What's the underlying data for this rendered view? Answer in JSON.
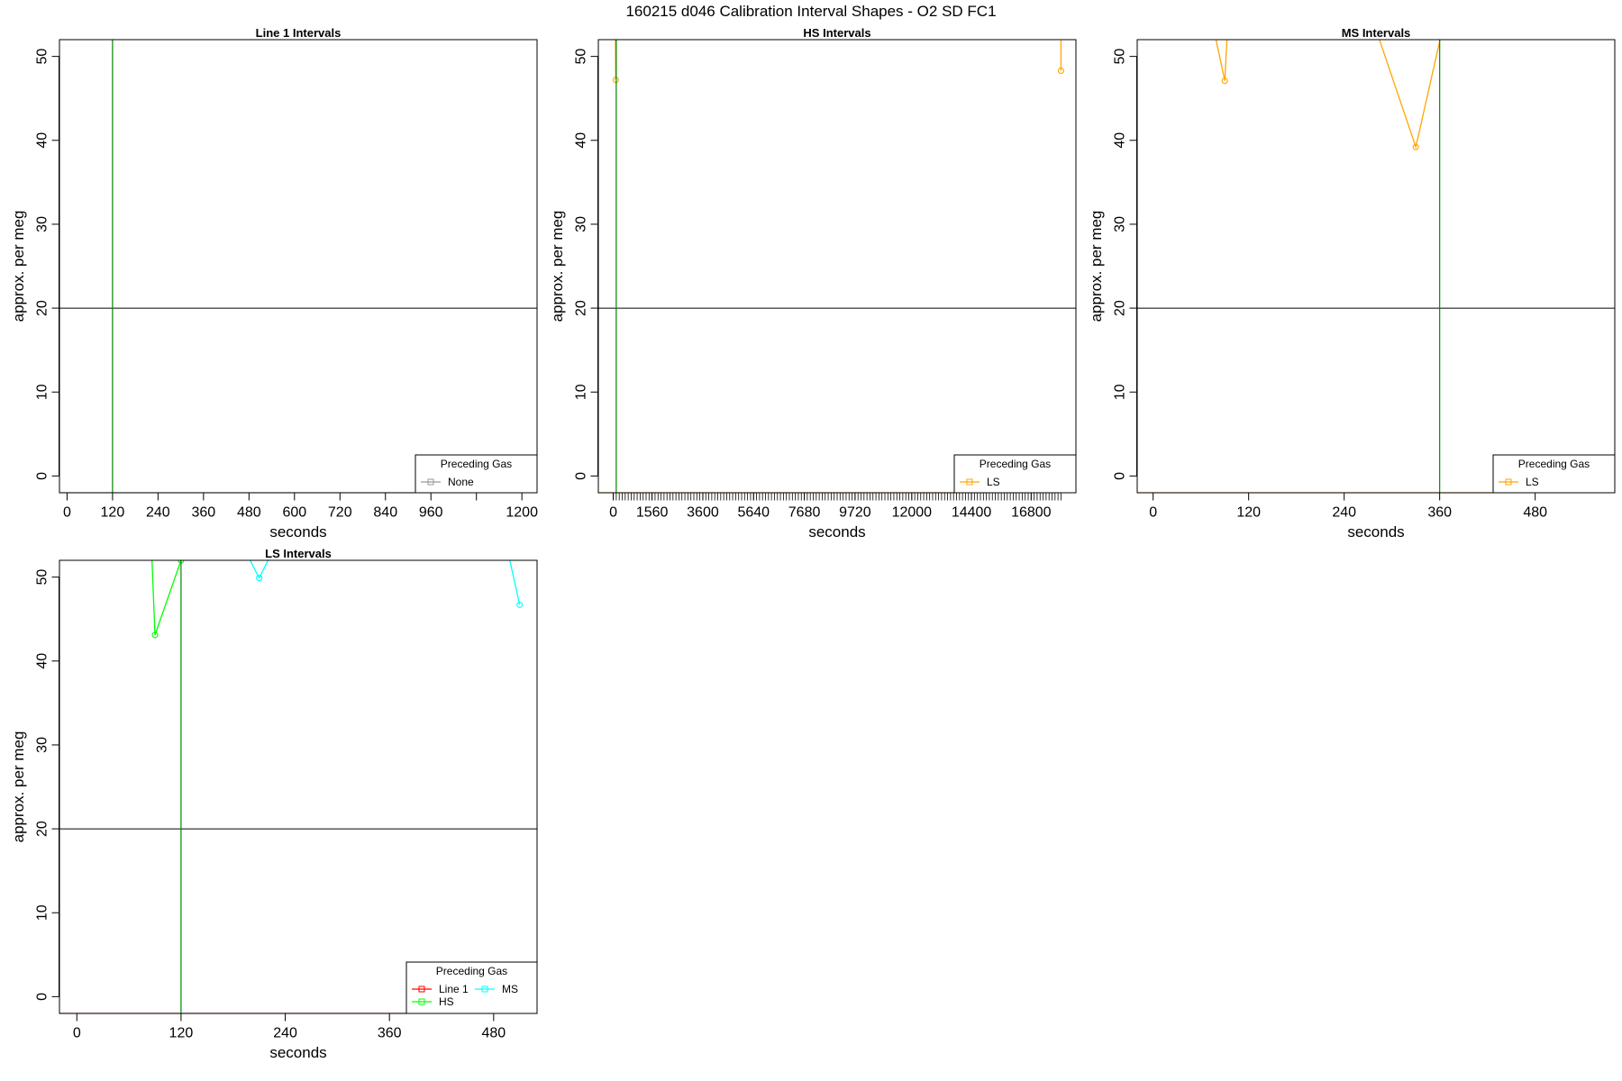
{
  "page": {
    "title": "160215   d046   Calibration Interval Shapes - O2 SD FC1"
  },
  "chart_data": [
    {
      "type": "line",
      "title": "Line 1 Intervals",
      "xlabel": "seconds",
      "ylabel": "approx. per meg",
      "xlim": [
        -20,
        1240
      ],
      "ylim": [
        -2,
        52
      ],
      "yticks": [
        0,
        10,
        20,
        30,
        40,
        50
      ],
      "xticks": [
        0,
        120,
        240,
        360,
        480,
        600,
        720,
        840,
        960,
        1080,
        1200
      ],
      "xtick_labels": [
        "0",
        "120",
        "240",
        "360",
        "480",
        "600",
        "720",
        "840",
        "960",
        "",
        "1200"
      ],
      "hline": 20,
      "vline": 120,
      "vline_color": "#008800",
      "legend": {
        "title": "Preceding Gas",
        "placement": "bottom-right",
        "entries": [
          {
            "label": "None",
            "color": "#999999"
          }
        ]
      },
      "series": [
        {
          "name": "None",
          "color": "#999999",
          "markers": false,
          "points": [
            [
              -20,
              -2
            ],
            [
              1240,
              -2
            ]
          ]
        }
      ]
    },
    {
      "type": "line",
      "title": "HS Intervals",
      "xlabel": "seconds",
      "ylabel": "approx. per meg",
      "xlim": [
        -600,
        18600
      ],
      "ylim": [
        -2,
        52
      ],
      "yticks": [
        0,
        10,
        20,
        30,
        40,
        50
      ],
      "xticks": [
        0,
        1560,
        3600,
        5640,
        7680,
        9720,
        12000,
        14400,
        16800
      ],
      "xtick_labels": [
        "0",
        "1560",
        "3600",
        "5640",
        "7680",
        "9720",
        "12000",
        "14400",
        "16800"
      ],
      "minor_xtick_step": 120,
      "minor_xtick_range": [
        0,
        18000
      ],
      "hline": 20,
      "vline": 120,
      "vline_color": "#008800",
      "legend": {
        "title": "Preceding Gas",
        "placement": "bottom-right",
        "entries": [
          {
            "label": "LS",
            "color": "#ffa500"
          }
        ]
      },
      "series": [
        {
          "name": "LS",
          "color": "#ffa500",
          "markers": false,
          "points": [
            [
              -600,
              -2
            ],
            [
              18600,
              -2
            ]
          ]
        },
        {
          "name": "LS",
          "color": "#ffa500",
          "markers": true,
          "points": [
            [
              80,
              56
            ],
            [
              100,
              47.2
            ],
            [
              100,
              56
            ]
          ]
        },
        {
          "name": "LS",
          "color": "#ffa500",
          "markers": true,
          "points": [
            [
              18000,
              56
            ],
            [
              18000,
              48.3
            ]
          ]
        }
      ]
    },
    {
      "type": "line",
      "title": "MS Intervals",
      "xlabel": "seconds",
      "ylabel": "approx. per meg",
      "xlim": [
        -20,
        580
      ],
      "ylim": [
        -2,
        52
      ],
      "yticks": [
        0,
        10,
        20,
        30,
        40,
        50
      ],
      "xticks": [
        0,
        120,
        240,
        360,
        480
      ],
      "xtick_labels": [
        "0",
        "120",
        "240",
        "360",
        "480"
      ],
      "hline": 20,
      "vline": 360,
      "vline_color": "#008800",
      "legend": {
        "title": "Preceding Gas",
        "placement": "bottom-right",
        "entries": [
          {
            "label": "LS",
            "color": "#ffa500"
          }
        ]
      },
      "series": [
        {
          "name": "LS",
          "color": "#ffa500",
          "markers": false,
          "points": [
            [
              -20,
              -2
            ],
            [
              580,
              -2
            ]
          ]
        },
        {
          "name": "LS",
          "color": "#ffa500",
          "markers": true,
          "points": [
            [
              70,
              56
            ],
            [
              90,
              47.1
            ],
            [
              95,
              56
            ]
          ]
        },
        {
          "name": "LS",
          "color": "#ffa500",
          "markers": true,
          "points": [
            [
              270,
              56
            ],
            [
              330,
              39.2
            ],
            [
              370,
              56
            ]
          ]
        }
      ]
    },
    {
      "type": "line",
      "title": "LS Intervals",
      "xlabel": "seconds",
      "ylabel": "approx. per meg",
      "xlim": [
        -20,
        530
      ],
      "ylim": [
        -2,
        52
      ],
      "yticks": [
        0,
        10,
        20,
        30,
        40,
        50
      ],
      "xticks": [
        0,
        120,
        240,
        360,
        480
      ],
      "xtick_labels": [
        "0",
        "120",
        "240",
        "360",
        "480"
      ],
      "hline": 20,
      "vline": 120,
      "vline_color": "#008800",
      "legend": {
        "title": "Preceding Gas",
        "placement": "bottom-right",
        "entries": [
          {
            "label": "Line 1",
            "color": "#ff0000"
          },
          {
            "label": "HS",
            "color": "#00ff00"
          },
          {
            "label": "MS",
            "color": "#00ffff"
          }
        ]
      },
      "series": [
        {
          "name": "Line 1",
          "color": "#ff0000",
          "markers": false,
          "points": [
            [
              -20,
              -2
            ],
            [
              530,
              -2
            ]
          ]
        },
        {
          "name": "HS",
          "color": "#00ff00",
          "markers": true,
          "points": [
            [
              85,
              56
            ],
            [
              90,
              43.1
            ],
            [
              120,
              52
            ],
            [
              125,
              56
            ]
          ]
        },
        {
          "name": "MS",
          "color": "#00ffff",
          "markers": true,
          "points": [
            [
              180,
              56
            ],
            [
              210,
              49.9
            ],
            [
              230,
              54
            ]
          ]
        },
        {
          "name": "MS",
          "color": "#00ffff",
          "markers": true,
          "points": [
            [
              490,
              56
            ],
            [
              510,
              46.7
            ]
          ]
        }
      ]
    }
  ]
}
